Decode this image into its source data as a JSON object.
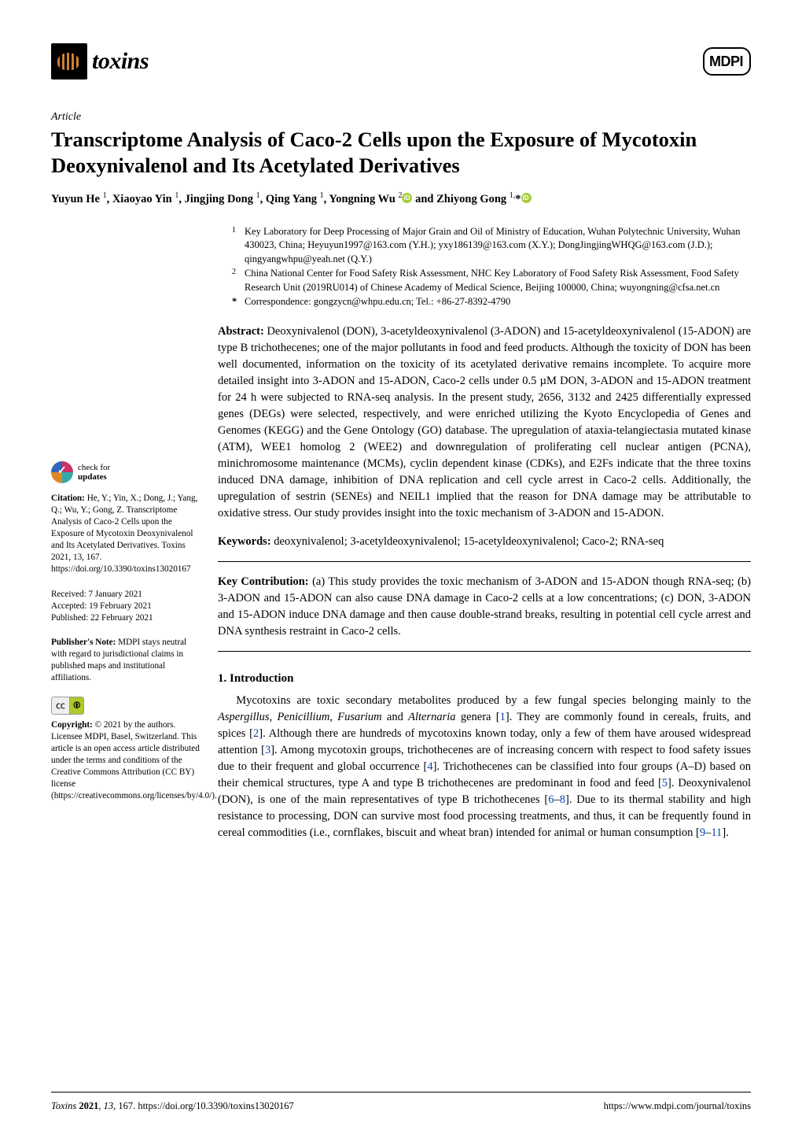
{
  "journal": {
    "name": "toxins",
    "publisher_logo": "MDPI"
  },
  "article_type": "Article",
  "title": "Transcriptome Analysis of Caco-2 Cells upon the Exposure of Mycotoxin Deoxynivalenol and Its Acetylated Derivatives",
  "authors_html": "Yuyun He <sup>1</sup>, Xiaoyao Yin <sup>1</sup>, Jingjing Dong <sup>1</sup>, Qing Yang <sup>1</sup>, Yongning Wu <sup>2</sup> and Zhiyong Gong <sup>1,</sup>*",
  "affiliations": [
    {
      "num": "1",
      "text": "Key Laboratory for Deep Processing of Major Grain and Oil of Ministry of Education, Wuhan Polytechnic University, Wuhan 430023, China; Heyuyun1997@163.com (Y.H.); yxy186139@163.com (X.Y.); DongJingjingWHQG@163.com (J.D.); qingyangwhpu@yeah.net (Q.Y.)"
    },
    {
      "num": "2",
      "text": "China National Center for Food Safety Risk Assessment, NHC Key Laboratory of Food Safety Risk Assessment, Food Safety Research Unit (2019RU014) of Chinese Academy of Medical Science, Beijing 100000, China; wuyongning@cfsa.net.cn"
    }
  ],
  "correspondence": "Correspondence: gongzycn@whpu.edu.cn; Tel.: +86-27-8392-4790",
  "abstract_label": "Abstract:",
  "abstract": " Deoxynivalenol (DON), 3-acetyldeoxynivalenol (3-ADON) and 15-acetyldeoxynivalenol (15-ADON) are type B trichothecenes; one of the major pollutants in food and feed products. Although the toxicity of DON has been well documented, information on the toxicity of its acetylated derivative remains incomplete. To acquire more detailed insight into 3-ADON and 15-ADON, Caco-2 cells under 0.5 µM DON, 3-ADON and 15-ADON treatment for 24 h were subjected to RNA-seq analysis. In the present study, 2656, 3132 and 2425 differentially expressed genes (DEGs) were selected, respectively, and were enriched utilizing the Kyoto Encyclopedia of Genes and Genomes (KEGG) and the Gene Ontology (GO) database. The upregulation of ataxia-telangiectasia mutated kinase (ATM), WEE1 homolog 2 (WEE2) and downregulation of proliferating cell nuclear antigen (PCNA), minichromosome maintenance (MCMs), cyclin dependent kinase (CDKs), and E2Fs indicate that the three toxins induced DNA damage, inhibition of DNA replication and cell cycle arrest in Caco-2 cells. Additionally, the upregulation of sestrin (SENEs) and NEIL1 implied that the reason for DNA damage may be attributable to oxidative stress. Our study provides insight into the toxic mechanism of 3-ADON and 15-ADON.",
  "keywords_label": "Keywords:",
  "keywords": " deoxynivalenol; 3-acetyldeoxynivalenol; 15-acetyldeoxynivalenol; Caco-2; RNA-seq",
  "keycontrib_label": "Key Contribution:",
  "keycontrib": " (a) This study provides the toxic mechanism of 3-ADON and 15-ADON though RNA-seq; (b) 3-ADON and 15-ADON can also cause DNA damage in Caco-2 cells at a low concentrations; (c) DON, 3-ADON and 15-ADON induce DNA damage and then cause double-strand breaks, resulting in potential cell cycle arrest and DNA synthesis restraint in Caco-2 cells.",
  "section1_heading": "1. Introduction",
  "intro_para": "Mycotoxins are toxic secondary metabolites produced by a few fungal species belonging mainly to the Aspergillus, Penicillium, Fusarium and Alternaria genera [1]. They are commonly found in cereals, fruits, and spices [2]. Although there are hundreds of mycotoxins known today, only a few of them have aroused widespread attention [3]. Among mycotoxin groups, trichothecenes are of increasing concern with respect to food safety issues due to their frequent and global occurrence [4]. Trichothecenes can be classified into four groups (A–D) based on their chemical structures, type A and type B trichothecenes are predominant in food and feed [5]. Deoxynivalenol (DON), is one of the main representatives of type B trichothecenes [6–8]. Due to its thermal stability and high resistance to processing, DON can survive most food processing treatments, and thus, it can be frequently found in cereal commodities (i.e., cornflakes, biscuit and wheat bran) intended for animal or human consumption [9–11].",
  "sidebar": {
    "check_updates_top": "check for",
    "check_updates_bot": "updates",
    "citation_label": "Citation:",
    "citation": " He, Y.; Yin, X.; Dong, J.; Yang, Q.; Wu, Y.; Gong, Z. Transcriptome Analysis of Caco-2 Cells upon the Exposure of Mycotoxin Deoxynivalenol and Its Acetylated Derivatives. Toxins 2021, 13, 167. https://doi.org/10.3390/toxins13020167",
    "received": "Received: 7 January 2021",
    "accepted": "Accepted: 19 February 2021",
    "published": "Published: 22 February 2021",
    "pubnote_label": "Publisher's Note:",
    "pubnote": " MDPI stays neutral with regard to jurisdictional claims in published maps and institutional affiliations.",
    "copyright_label": "Copyright:",
    "copyright": " © 2021 by the authors. Licensee MDPI, Basel, Switzerland. This article is an open access article distributed under the terms and conditions of the Creative Commons Attribution (CC BY) license (https://creativecommons.org/licenses/by/4.0/)."
  },
  "footer": {
    "left": "Toxins 2021, 13, 167. https://doi.org/10.3390/toxins13020167",
    "right": "https://www.mdpi.com/journal/toxins"
  },
  "refs": [
    "1",
    "2",
    "3",
    "4",
    "5",
    "6",
    "8",
    "9",
    "11"
  ]
}
